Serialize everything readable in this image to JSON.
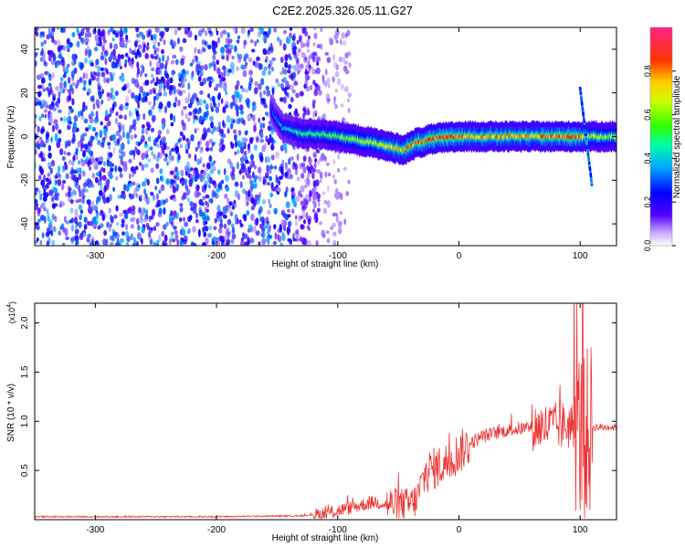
{
  "title": "C2E2.2025.326.05.11.G27",
  "chart_data": [
    {
      "type": "heatmap",
      "xlabel": "Height of straight line (km)",
      "ylabel": "Frequency (Hz)",
      "xlim": [
        -350,
        130
      ],
      "ylim": [
        -50,
        50
      ],
      "x_ticks": [
        -300,
        -200,
        -100,
        0,
        100
      ],
      "x_tick_labels": [
        "-300",
        "-200",
        "-100",
        "0",
        "100"
      ],
      "y_ticks": [
        -40,
        -20,
        0,
        20,
        40
      ],
      "y_tick_labels": [
        "-40",
        "-20",
        "0",
        "20",
        "40"
      ],
      "colorbar": {
        "label": "Normalized spectral amplitude",
        "range": [
          0,
          1
        ],
        "ticks": [
          0.0,
          0.2,
          0.4,
          0.6,
          0.8
        ],
        "tick_labels": [
          "0.0",
          "0.2",
          "0.4",
          "0.6",
          "0.8"
        ],
        "colormap": [
          "#ffffff",
          "#5500ff",
          "#0000ff",
          "#00bbff",
          "#00ff88",
          "#66ff00",
          "#ffff00",
          "#ff8800",
          "#ff0000",
          "#ff1a80"
        ]
      },
      "noise_region_x": [
        -350,
        -115
      ],
      "noise_level_peak": 0.3,
      "ridge": {
        "x": [
          -155,
          -145,
          -130,
          -110,
          -90,
          -70,
          -55,
          -45,
          -35,
          -20,
          0,
          20,
          50,
          80,
          100,
          106,
          130
        ],
        "f": [
          12,
          4,
          1.5,
          1,
          -1,
          -3,
          -5,
          -6,
          -3,
          -1,
          0,
          0,
          0,
          0,
          0,
          0,
          0
        ],
        "amp": [
          0.25,
          0.35,
          0.45,
          0.5,
          0.55,
          0.6,
          0.7,
          0.75,
          0.8,
          0.85,
          0.8,
          0.75,
          0.75,
          0.8,
          0.85,
          0.6,
          0.55
        ]
      },
      "grid": false
    },
    {
      "type": "line",
      "xlabel": "Height of straight line (km)",
      "ylabel": "SNR (10 * v/v)",
      "y_multiplier_label": "(x10",
      "y_multiplier_exp": "4",
      "xlim": [
        -350,
        130
      ],
      "ylim": [
        0,
        22000
      ],
      "x_ticks": [
        -300,
        -200,
        -100,
        0,
        100
      ],
      "x_tick_labels": [
        "-300",
        "-200",
        "-100",
        "0",
        "100"
      ],
      "y_ticks": [
        5000,
        10000,
        15000,
        20000
      ],
      "y_tick_labels": [
        "0.5",
        "1.0",
        "1.5",
        "2.0"
      ],
      "series": [
        {
          "color": "#ee3333",
          "envelope_x": [
            -350,
            -200,
            -130,
            -110,
            -100,
            -90,
            -80,
            -70,
            -60,
            -50,
            -42,
            -35,
            -30,
            -25,
            -20,
            -10,
            0,
            10,
            20,
            40,
            60,
            80,
            95,
            103,
            110,
            120,
            130
          ],
          "envelope_y": [
            300,
            300,
            400,
            600,
            900,
            1200,
            1500,
            1800,
            1600,
            1500,
            1500,
            2000,
            4000,
            5000,
            5200,
            5800,
            6800,
            7800,
            8500,
            9100,
            9400,
            9500,
            9600,
            8000,
            9400,
            9400,
            9400
          ],
          "noise_amp": [
            {
              "x": [
                -120,
                -60
              ],
              "amp": 700
            },
            {
              "x": [
                -60,
                -30
              ],
              "amp": 1800
            },
            {
              "x": [
                -30,
                10
              ],
              "amp": 2200
            },
            {
              "x": [
                10,
                60
              ],
              "amp": 700
            },
            {
              "x": [
                60,
                95
              ],
              "amp": 2500
            },
            {
              "x": [
                95,
                110
              ],
              "amp": 9000
            },
            {
              "x": [
                110,
                130
              ],
              "amp": 400
            }
          ],
          "peak": {
            "x": 102,
            "y": 22000
          }
        }
      ],
      "grid": false
    }
  ]
}
